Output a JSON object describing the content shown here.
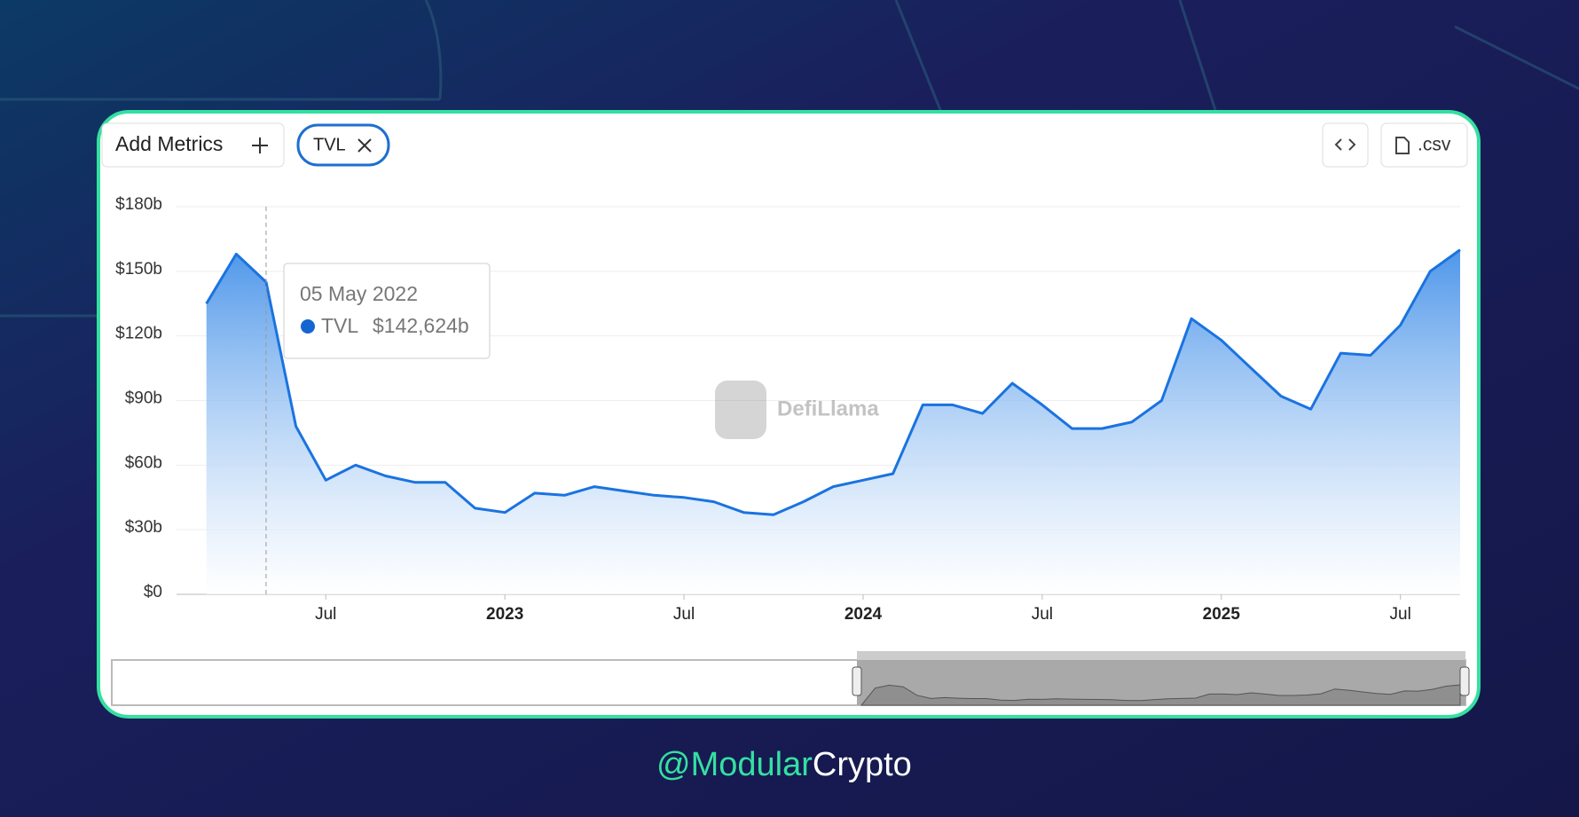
{
  "toolbar": {
    "add_button": "Add Metrics",
    "metric_pill": "TVL",
    "csv_button": ".csv"
  },
  "watermark": "DefiLlama",
  "tooltip": {
    "date": "05 May 2022",
    "series": "TVL",
    "value": "$142,624b"
  },
  "footer": {
    "handle_prefix": "@Modular",
    "handle_suffix": "Crypto"
  },
  "chart_data": {
    "type": "line",
    "x": [
      "2022-03",
      "2022-04",
      "2022-05",
      "2022-06",
      "2022-07",
      "2022-08",
      "2022-09",
      "2022-10",
      "2022-11",
      "2022-12",
      "2023-01",
      "2023-02",
      "2023-03",
      "2023-04",
      "2023-05",
      "2023-06",
      "2023-07",
      "2023-08",
      "2023-09",
      "2023-10",
      "2023-11",
      "2023-12",
      "2024-01",
      "2024-02",
      "2024-03",
      "2024-04",
      "2024-05",
      "2024-06",
      "2024-07",
      "2024-08",
      "2024-09",
      "2024-10",
      "2024-11",
      "2024-12",
      "2025-01",
      "2025-02",
      "2025-03",
      "2025-04",
      "2025-05",
      "2025-06",
      "2025-07",
      "2025-08",
      "2025-09"
    ],
    "series": [
      {
        "name": "TVL",
        "color": "#1a73e0",
        "values": [
          135,
          158,
          145,
          78,
          53,
          60,
          55,
          52,
          52,
          40,
          38,
          47,
          46,
          50,
          48,
          46,
          45,
          43,
          38,
          37,
          43,
          50,
          53,
          56,
          88,
          88,
          84,
          98,
          88,
          77,
          77,
          80,
          90,
          128,
          118,
          105,
          92,
          86,
          112,
          111,
          125,
          150,
          160
        ]
      }
    ],
    "xlim": [
      "2022-02",
      "2025-09"
    ],
    "xticks": [
      {
        "value": "2022-07",
        "label": "Jul"
      },
      {
        "value": "2023-01",
        "label": "2023"
      },
      {
        "value": "2023-07",
        "label": "Jul"
      },
      {
        "value": "2024-01",
        "label": "2024"
      },
      {
        "value": "2024-07",
        "label": "Jul"
      },
      {
        "value": "2025-01",
        "label": "2025"
      },
      {
        "value": "2025-07",
        "label": "Jul"
      }
    ],
    "ylim": [
      0,
      180
    ],
    "yticks": [
      {
        "value": 0,
        "label": "$0"
      },
      {
        "value": 30,
        "label": "$30b"
      },
      {
        "value": 60,
        "label": "$60b"
      },
      {
        "value": 90,
        "label": "$90b"
      },
      {
        "value": 120,
        "label": "$120b"
      },
      {
        "value": 150,
        "label": "$150b"
      },
      {
        "value": 180,
        "label": "$180b"
      }
    ],
    "grid": true
  }
}
